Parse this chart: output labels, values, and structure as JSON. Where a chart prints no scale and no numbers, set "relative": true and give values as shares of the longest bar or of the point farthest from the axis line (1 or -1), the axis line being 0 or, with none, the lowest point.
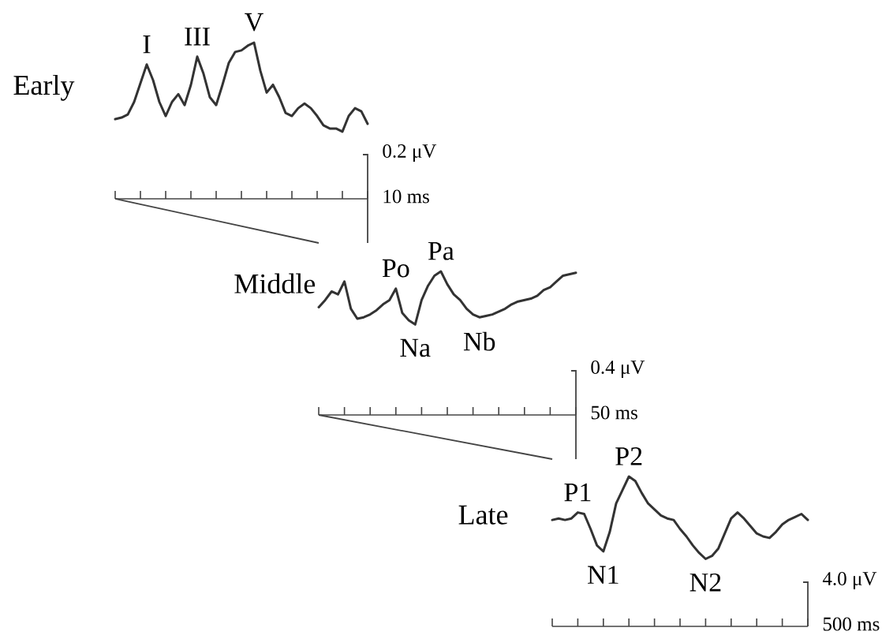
{
  "chart_data": [
    {
      "type": "line",
      "title": "Early",
      "relative": true,
      "color": "#333333",
      "categories": [
        null,
        null,
        null,
        null,
        null,
        null,
        null,
        null,
        null,
        null,
        null,
        null,
        null,
        null,
        null,
        null,
        null,
        null,
        null,
        null,
        null,
        null,
        null,
        null,
        null,
        null,
        null,
        null,
        null,
        null,
        null,
        null,
        null,
        null,
        null,
        null,
        null,
        null,
        null,
        null,
        null
      ],
      "values": [
        0.51,
        0.52,
        0.54,
        0.62,
        0.74,
        0.86,
        0.76,
        0.62,
        0.53,
        0.62,
        0.67,
        0.6,
        0.73,
        0.91,
        0.8,
        0.65,
        0.6,
        0.73,
        0.87,
        0.94,
        0.95,
        0.98,
        1.0,
        0.82,
        0.68,
        0.73,
        0.65,
        0.55,
        0.53,
        0.58,
        0.61,
        0.58,
        0.53,
        0.47,
        0.45,
        0.45,
        0.43,
        0.53,
        0.58,
        0.56,
        0.48
      ],
      "annotations": [
        "0.2 μV",
        "10 ms",
        {
          "text": "I",
          "y": 0.86
        },
        {
          "text": "III",
          "y": 0.91
        },
        {
          "text": "V",
          "y": 1.0
        }
      ]
    },
    {
      "type": "line",
      "title": "Middle",
      "relative": true,
      "color": "#333333",
      "categories": [
        null,
        null,
        null,
        null,
        null,
        null,
        null,
        null,
        null,
        null,
        null,
        null,
        null,
        null,
        null,
        null,
        null,
        null,
        null,
        null,
        null,
        null,
        null,
        null,
        null,
        null,
        null,
        null,
        null,
        null,
        null,
        null,
        null,
        null,
        null,
        null,
        null,
        null,
        null,
        null,
        null
      ],
      "values": [
        0.75,
        0.8,
        0.86,
        0.84,
        0.93,
        0.74,
        0.67,
        0.68,
        0.7,
        0.73,
        0.77,
        0.8,
        0.88,
        0.71,
        0.66,
        0.63,
        0.8,
        0.9,
        0.97,
        1.0,
        0.91,
        0.84,
        0.8,
        0.74,
        0.7,
        0.68,
        0.69,
        0.7,
        0.72,
        0.74,
        0.77,
        0.79,
        0.8,
        0.81,
        0.83,
        0.87,
        0.89,
        0.93,
        0.97,
        0.98,
        0.99
      ],
      "annotations": [
        "0.4 μV",
        "50 ms",
        {
          "text": "Po",
          "y": 0.88
        },
        {
          "text": "Na",
          "y": 0.63
        },
        {
          "text": "Pa",
          "y": 1.0
        },
        {
          "text": "Nb",
          "y": 0.68
        }
      ]
    },
    {
      "type": "line",
      "title": "Late",
      "relative": true,
      "color": "#333333",
      "categories": [
        null,
        null,
        null,
        null,
        null,
        null,
        null,
        null,
        null,
        null,
        null,
        null,
        null,
        null,
        null,
        null,
        null,
        null,
        null,
        null,
        null,
        null,
        null,
        null,
        null,
        null,
        null,
        null,
        null,
        null,
        null,
        null,
        null,
        null,
        null,
        null,
        null,
        null,
        null,
        null,
        null
      ],
      "values": [
        0.71,
        0.72,
        0.71,
        0.72,
        0.76,
        0.75,
        0.65,
        0.54,
        0.5,
        0.63,
        0.82,
        0.91,
        1.0,
        0.97,
        0.89,
        0.82,
        0.78,
        0.74,
        0.72,
        0.71,
        0.65,
        0.6,
        0.54,
        0.49,
        0.45,
        0.47,
        0.52,
        0.62,
        0.72,
        0.76,
        0.72,
        0.67,
        0.62,
        0.6,
        0.59,
        0.63,
        0.68,
        0.71,
        0.73,
        0.75,
        0.71
      ],
      "annotations": [
        "4.0 μV",
        "500 ms",
        {
          "text": "P1",
          "y": 0.76
        },
        {
          "text": "N1",
          "y": 0.5
        },
        {
          "text": "P2",
          "y": 1.0
        },
        {
          "text": "N2",
          "y": 0.45
        }
      ]
    }
  ]
}
